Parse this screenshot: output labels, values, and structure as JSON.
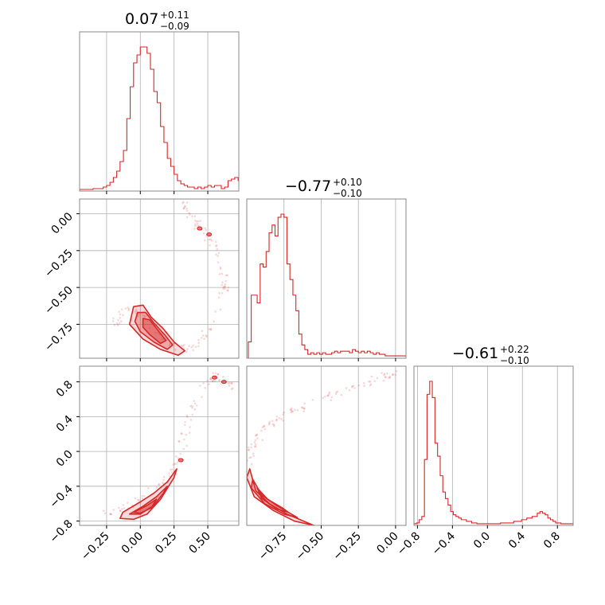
{
  "chart_data": {
    "type": "corner",
    "color": "#d62728",
    "grid": true,
    "panels": [
      {
        "id": "hist-0",
        "type": "histogram",
        "title_value": "0.07",
        "title_plus": "+0.11",
        "title_minus": "−0.09",
        "xlim": [
          -0.45,
          0.73
        ],
        "bins": {
          "start": -0.45,
          "step": 0.025,
          "counts": [
            0.5,
            0.5,
            0.5,
            0.5,
            1,
            1,
            1,
            2,
            3,
            5,
            8,
            12,
            18,
            25,
            45,
            65,
            80,
            85,
            90,
            90,
            86,
            76,
            62,
            55,
            40,
            30,
            20,
            15,
            10,
            6,
            4,
            3,
            2,
            2,
            1,
            2,
            1,
            2,
            3,
            2,
            3,
            3,
            1,
            2,
            6,
            7,
            8,
            6,
            5,
            3
          ]
        }
      },
      {
        "id": "scatter-1-0",
        "type": "2d-density",
        "xlim": [
          -0.45,
          0.73
        ],
        "ylim": [
          -0.98,
          0.1
        ],
        "yticks": [
          "0.00",
          "−0.25",
          "−0.50",
          "−0.75"
        ],
        "ytick_values": [
          0.0,
          -0.25,
          -0.5,
          -0.75
        ],
        "contour_levels": [
          [
            [
              -0.05,
              -0.63
            ],
            [
              0.02,
              -0.62
            ],
            [
              0.08,
              -0.7
            ],
            [
              0.17,
              -0.78
            ],
            [
              0.25,
              -0.87
            ],
            [
              0.33,
              -0.93
            ],
            [
              0.28,
              -0.96
            ],
            [
              0.15,
              -0.92
            ],
            [
              0.02,
              -0.85
            ],
            [
              -0.08,
              -0.75
            ]
          ],
          [
            [
              -0.02,
              -0.67
            ],
            [
              0.04,
              -0.67
            ],
            [
              0.1,
              -0.74
            ],
            [
              0.18,
              -0.82
            ],
            [
              0.24,
              -0.89
            ],
            [
              0.2,
              -0.92
            ],
            [
              0.1,
              -0.87
            ],
            [
              0.0,
              -0.8
            ],
            [
              -0.04,
              -0.73
            ]
          ],
          [
            [
              0.02,
              -0.71
            ],
            [
              0.07,
              -0.72
            ],
            [
              0.13,
              -0.79
            ],
            [
              0.19,
              -0.86
            ],
            [
              0.15,
              -0.88
            ],
            [
              0.07,
              -0.82
            ],
            [
              0.02,
              -0.77
            ]
          ]
        ],
        "extra_blobs": [
          [
            0.44,
            -0.1
          ],
          [
            0.51,
            -0.14
          ]
        ],
        "scatter_curve": [
          [
            -0.2,
            -0.75
          ],
          [
            -0.1,
            -0.65
          ],
          [
            0.05,
            -0.7
          ],
          [
            0.2,
            -0.86
          ],
          [
            0.35,
            -0.93
          ],
          [
            0.5,
            -0.8
          ],
          [
            0.64,
            -0.5
          ],
          [
            0.6,
            -0.3
          ],
          [
            0.5,
            -0.15
          ],
          [
            0.4,
            -0.05
          ],
          [
            0.3,
            0.1
          ]
        ]
      },
      {
        "id": "hist-1",
        "type": "histogram",
        "title_value": "−0.77",
        "title_plus": "+0.10",
        "title_minus": "−0.10",
        "xlim": [
          -1.0,
          0.07
        ],
        "bins": {
          "start": -0.99,
          "step": 0.02,
          "counts": [
            10,
            40,
            40,
            35,
            60,
            58,
            68,
            80,
            85,
            78,
            90,
            92,
            90,
            60,
            50,
            40,
            30,
            15,
            8,
            5,
            2,
            3,
            2,
            3,
            2,
            3,
            2,
            2,
            3,
            4,
            3,
            4,
            4,
            4,
            3,
            5,
            4,
            3,
            4,
            3,
            4,
            3,
            2,
            3,
            2,
            2,
            1,
            1,
            1,
            1,
            1,
            1,
            1
          ]
        }
      },
      {
        "id": "scatter-2-0",
        "type": "2d-density",
        "xlim": [
          -0.45,
          0.73
        ],
        "ylim": [
          -0.85,
          0.98
        ],
        "xticks": [
          "−0.25",
          "0.00",
          "0.25",
          "0.50"
        ],
        "xtick_values": [
          -0.25,
          0.0,
          0.25,
          0.5
        ],
        "yticks": [
          "0.8",
          "0.4",
          "0.0",
          "−0.4",
          "−0.8"
        ],
        "ytick_values": [
          0.8,
          0.4,
          0.0,
          -0.4,
          -0.8
        ],
        "contour_levels": [
          [
            [
              -0.13,
              -0.7
            ],
            [
              0.0,
              -0.58
            ],
            [
              0.1,
              -0.48
            ],
            [
              0.2,
              -0.35
            ],
            [
              0.27,
              -0.2
            ],
            [
              0.25,
              -0.3
            ],
            [
              0.15,
              -0.55
            ],
            [
              0.05,
              -0.72
            ],
            [
              -0.05,
              -0.78
            ],
            [
              -0.15,
              -0.77
            ]
          ],
          [
            [
              -0.08,
              -0.72
            ],
            [
              0.02,
              -0.63
            ],
            [
              0.12,
              -0.52
            ],
            [
              0.2,
              -0.4
            ],
            [
              0.17,
              -0.48
            ],
            [
              0.1,
              -0.62
            ],
            [
              0.0,
              -0.72
            ]
          ],
          [
            [
              -0.05,
              -0.7
            ],
            [
              0.05,
              -0.62
            ],
            [
              0.12,
              -0.55
            ],
            [
              0.08,
              -0.65
            ],
            [
              0.0,
              -0.71
            ]
          ]
        ],
        "extra_blobs": [
          [
            0.3,
            -0.1
          ],
          [
            0.55,
            0.85
          ],
          [
            0.62,
            0.8
          ]
        ],
        "scatter_curve": [
          [
            -0.25,
            -0.7
          ],
          [
            -0.05,
            -0.6
          ],
          [
            0.15,
            -0.4
          ],
          [
            0.28,
            -0.1
          ],
          [
            0.35,
            0.3
          ],
          [
            0.45,
            0.7
          ],
          [
            0.55,
            0.87
          ],
          [
            0.68,
            0.75
          ]
        ]
      },
      {
        "id": "scatter-2-1",
        "type": "2d-density",
        "xlim": [
          -1.0,
          0.07
        ],
        "ylim": [
          -0.85,
          0.98
        ],
        "xticks": [
          "−0.75",
          "−0.50",
          "−0.25",
          "0.00"
        ],
        "xtick_values": [
          -0.75,
          -0.5,
          -0.25,
          0.0
        ],
        "contour_levels": [
          [
            [
              -0.98,
              -0.2
            ],
            [
              -0.94,
              -0.45
            ],
            [
              -0.85,
              -0.6
            ],
            [
              -0.73,
              -0.72
            ],
            [
              -0.62,
              -0.8
            ],
            [
              -0.55,
              -0.85
            ],
            [
              -0.68,
              -0.8
            ],
            [
              -0.82,
              -0.68
            ],
            [
              -0.95,
              -0.52
            ],
            [
              -1.0,
              -0.3
            ]
          ],
          [
            [
              -0.96,
              -0.32
            ],
            [
              -0.9,
              -0.5
            ],
            [
              -0.8,
              -0.62
            ],
            [
              -0.7,
              -0.72
            ],
            [
              -0.66,
              -0.76
            ],
            [
              -0.75,
              -0.72
            ],
            [
              -0.88,
              -0.6
            ],
            [
              -0.97,
              -0.42
            ]
          ],
          [
            [
              -0.93,
              -0.42
            ],
            [
              -0.86,
              -0.55
            ],
            [
              -0.76,
              -0.65
            ],
            [
              -0.72,
              -0.7
            ],
            [
              -0.8,
              -0.66
            ],
            [
              -0.9,
              -0.54
            ]
          ]
        ],
        "extra_blobs": [],
        "scatter_curve": [
          [
            -0.98,
            -0.1
          ],
          [
            -0.95,
            0.1
          ],
          [
            -0.85,
            0.3
          ],
          [
            -0.7,
            0.45
          ],
          [
            -0.5,
            0.6
          ],
          [
            -0.3,
            0.72
          ],
          [
            -0.1,
            0.85
          ],
          [
            0.0,
            0.92
          ]
        ]
      },
      {
        "id": "hist-2",
        "type": "histogram",
        "title_value": "−0.61",
        "title_plus": "+0.22",
        "title_minus": "−0.10",
        "xlim": [
          -0.84,
          0.98
        ],
        "xticks": [
          "−0.8",
          "−0.4",
          "0.0",
          "0.4",
          "0.8"
        ],
        "xtick_values": [
          -0.8,
          -0.4,
          0.0,
          0.4,
          0.8
        ],
        "bins": {
          "start": -0.84,
          "step": 0.03,
          "counts": [
            0.5,
            1,
            3,
            5,
            40,
            80,
            88,
            78,
            50,
            42,
            30,
            20,
            16,
            12,
            8,
            6,
            5,
            4,
            3,
            3,
            2,
            2,
            1,
            1,
            0.5,
            0.5,
            0.5,
            0.5,
            0.5,
            0.5,
            0.5,
            0.5,
            0.5,
            1,
            1,
            1,
            1,
            1,
            2,
            2,
            2,
            3,
            3,
            4,
            4,
            5,
            5,
            7,
            8,
            7,
            6,
            4,
            3,
            2,
            1,
            1,
            0.5,
            0.5,
            0.5,
            0.5,
            0.5
          ]
        }
      }
    ]
  }
}
